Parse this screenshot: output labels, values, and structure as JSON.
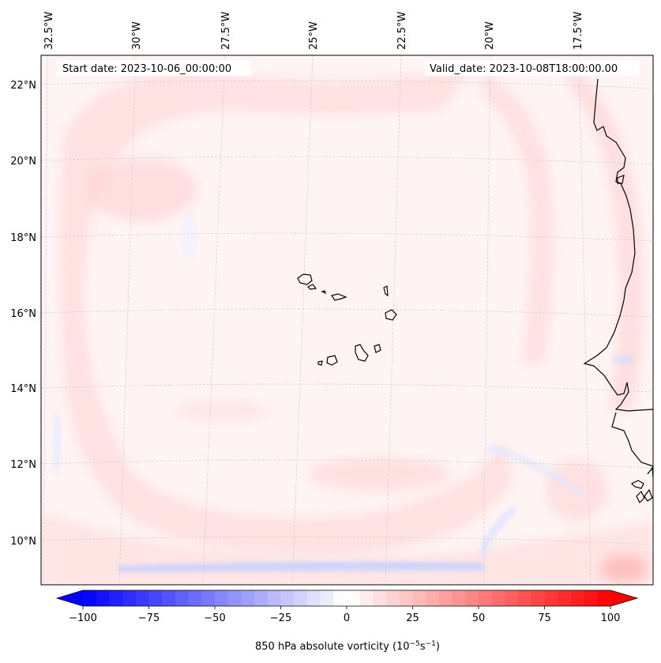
{
  "header": {
    "start_date": "Start date: 2023-10-06_00:00:00",
    "valid_date": "Valid_date: 2023-10-08T18:00:00.00"
  },
  "axes": {
    "lon_labels": [
      "32.5°W",
      "30°W",
      "27.5°W",
      "25°W",
      "22.5°W",
      "20°W",
      "17.5°W"
    ],
    "lat_labels": [
      "22°N",
      "20°N",
      "18°N",
      "16°N",
      "14°N",
      "12°N",
      "10°N"
    ]
  },
  "colorbar": {
    "title": "850 hPa absolute vorticity (10",
    "unit_exp1": "−5",
    "unit_mid": "s",
    "unit_exp2": "−1",
    "unit_close": ")",
    "ticks": [
      "−100",
      "−75",
      "−50",
      "−25",
      "0",
      "25",
      "50",
      "75",
      "100"
    ],
    "min": -100,
    "max": 100,
    "step": 5,
    "low_color": "#0000ff",
    "mid_color": "#ffffff",
    "high_color": "#ff0000"
  },
  "colors": {
    "land_outline": "#000000",
    "grid": "#c8c8c8",
    "field_background": "#fff3f3",
    "positive_band": "#ffd6d6",
    "negative_band": "#e6ebff"
  }
}
